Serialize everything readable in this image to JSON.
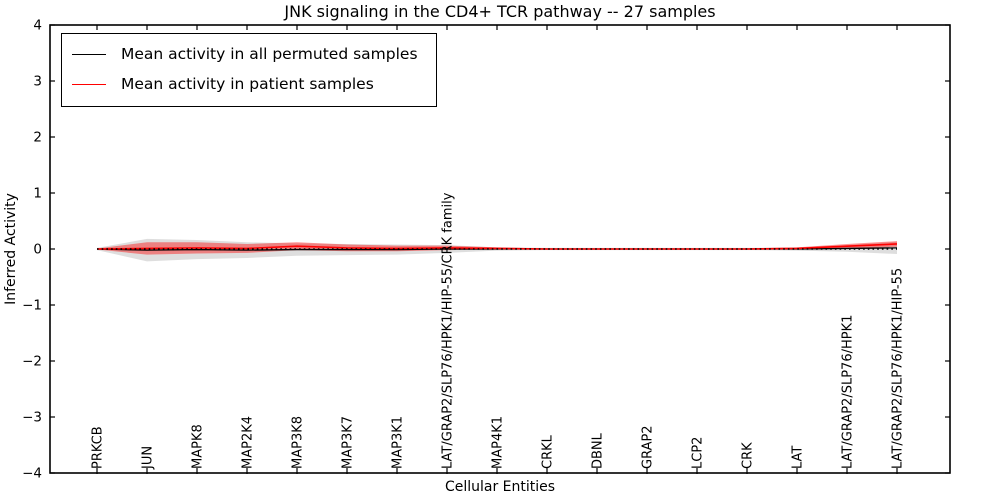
{
  "chart_data": {
    "type": "line",
    "title": "JNK signaling in the CD4+ TCR pathway -- 27 samples",
    "xlabel": "Cellular Entities",
    "ylabel": "Inferred Activity",
    "ylim": [
      -4,
      4
    ],
    "yticks": [
      4,
      3,
      2,
      1,
      0,
      -1,
      -2,
      -3,
      -4
    ],
    "grid": false,
    "x_tick_label_rotation": 90,
    "zero_reference_line": {
      "value": 0,
      "style": "dotted",
      "color": "#000000"
    },
    "legend": {
      "position": "upper-left",
      "entries": [
        {
          "label": "Mean activity in all permuted samples",
          "color": "#000000"
        },
        {
          "label": "Mean activity in patient samples",
          "color": "#ff0000"
        }
      ]
    },
    "categories": [
      "PRKCB",
      "JUN",
      "MAPK8",
      "MAP2K4",
      "MAP3K8",
      "MAP3K7",
      "MAP3K1",
      "LAT/GRAP2/SLP76/HPK1/HIP-55/CRK family",
      "MAP4K1",
      "CRKL",
      "DBNL",
      "GRAP2",
      "LCP2",
      "CRK",
      "LAT",
      "LAT/GRAP2/SLP76/HPK1",
      "LAT/GRAP2/SLP76/HPK1/HIP-55"
    ],
    "series": [
      {
        "name": "Mean activity in all permuted samples",
        "color": "#000000",
        "values": [
          0.0,
          -0.02,
          -0.01,
          -0.02,
          -0.01,
          -0.01,
          -0.01,
          0.0,
          0.0,
          0.0,
          0.0,
          0.0,
          0.0,
          0.0,
          0.0,
          0.01,
          0.02
        ],
        "band_std": [
          0.02,
          0.2,
          0.17,
          0.14,
          0.11,
          0.1,
          0.09,
          0.07,
          0.03,
          0.02,
          0.02,
          0.02,
          0.02,
          0.02,
          0.03,
          0.06,
          0.11
        ],
        "band_color": "#888888",
        "band_opacity": 0.28
      },
      {
        "name": "Mean activity in patient samples",
        "color": "#ff0000",
        "values": [
          0.0,
          0.01,
          0.02,
          0.01,
          0.05,
          0.02,
          0.01,
          0.02,
          0.01,
          0.0,
          0.0,
          0.0,
          0.0,
          0.0,
          0.01,
          0.05,
          0.09
        ],
        "band_std": [
          0.01,
          0.11,
          0.1,
          0.08,
          0.07,
          0.06,
          0.05,
          0.04,
          0.02,
          0.01,
          0.01,
          0.01,
          0.01,
          0.01,
          0.02,
          0.04,
          0.05
        ],
        "band_color": "#ff0000",
        "band_opacity": 0.42
      }
    ]
  }
}
